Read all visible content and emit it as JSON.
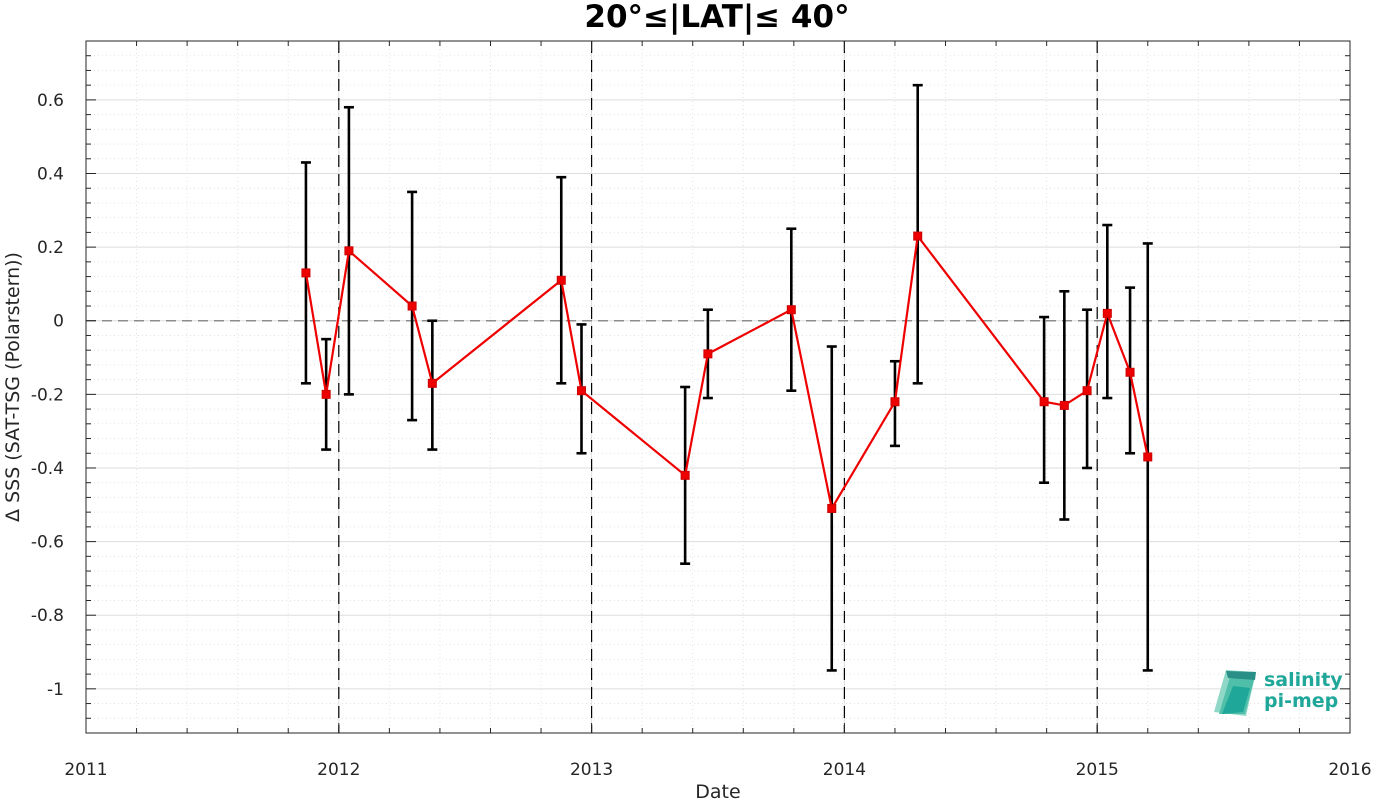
{
  "chart_data": {
    "type": "line",
    "title": "20°≤|LAT|≤ 40°",
    "xlabel": "Date",
    "ylabel": "Δ SSS (SAT-TSG (Polarstern))",
    "xlim": [
      2011,
      2016
    ],
    "ylim": [
      -1.12,
      0.76
    ],
    "x_ticks": [
      2011,
      2012,
      2013,
      2014,
      2015,
      2016
    ],
    "x_tick_labels": [
      "2011",
      "2012",
      "2013",
      "2014",
      "2015",
      "2016"
    ],
    "y_ticks": [
      0.6,
      0.4,
      0.2,
      0,
      -0.2,
      -0.4,
      -0.6,
      -0.8,
      -1
    ],
    "y_tick_labels": [
      "0.6",
      "0.4",
      "0.2",
      "0",
      "-0.2",
      "-0.4",
      "-0.6",
      "-0.8",
      "-1"
    ],
    "grid": true,
    "year_separators": [
      2012,
      2013,
      2014,
      2015
    ],
    "zero_line": 0,
    "series": [
      {
        "color": "#ee0000",
        "errorbar_color": "#000000",
        "points": [
          {
            "x": 2011.87,
            "y": 0.13,
            "lo": -0.17,
            "hi": 0.43
          },
          {
            "x": 2011.95,
            "y": -0.2,
            "lo": -0.35,
            "hi": -0.05
          },
          {
            "x": 2012.04,
            "y": 0.19,
            "lo": -0.2,
            "hi": 0.58
          },
          {
            "x": 2012.29,
            "y": 0.04,
            "lo": -0.27,
            "hi": 0.35
          },
          {
            "x": 2012.37,
            "y": -0.17,
            "lo": -0.35,
            "hi": 0.0
          },
          {
            "x": 2012.88,
            "y": 0.11,
            "lo": -0.17,
            "hi": 0.39
          },
          {
            "x": 2012.96,
            "y": -0.19,
            "lo": -0.36,
            "hi": -0.01
          },
          {
            "x": 2013.37,
            "y": -0.42,
            "lo": -0.66,
            "hi": -0.18
          },
          {
            "x": 2013.46,
            "y": -0.09,
            "lo": -0.21,
            "hi": 0.03
          },
          {
            "x": 2013.79,
            "y": 0.03,
            "lo": -0.19,
            "hi": 0.25
          },
          {
            "x": 2013.95,
            "y": -0.51,
            "lo": -0.95,
            "hi": -0.07
          },
          {
            "x": 2014.2,
            "y": -0.22,
            "lo": -0.34,
            "hi": -0.11
          },
          {
            "x": 2014.29,
            "y": 0.23,
            "lo": -0.17,
            "hi": 0.64
          },
          {
            "x": 2014.79,
            "y": -0.22,
            "lo": -0.44,
            "hi": 0.01
          },
          {
            "x": 2014.87,
            "y": -0.23,
            "lo": -0.54,
            "hi": 0.08
          },
          {
            "x": 2014.96,
            "y": -0.19,
            "lo": -0.4,
            "hi": 0.03
          },
          {
            "x": 2015.04,
            "y": 0.02,
            "lo": -0.21,
            "hi": 0.26
          },
          {
            "x": 2015.13,
            "y": -0.14,
            "lo": -0.36,
            "hi": 0.09
          },
          {
            "x": 2015.2,
            "y": -0.37,
            "lo": -0.95,
            "hi": 0.21
          }
        ]
      }
    ]
  },
  "logo": {
    "line1": "salinity",
    "line2": "pi-mep",
    "color": "#1fa79a"
  }
}
